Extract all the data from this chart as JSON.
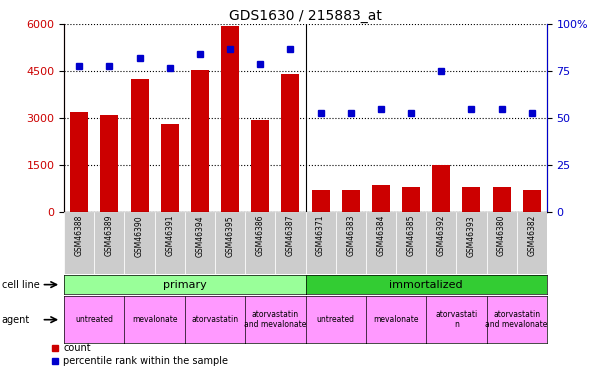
{
  "title": "GDS1630 / 215883_at",
  "samples": [
    "GSM46388",
    "GSM46389",
    "GSM46390",
    "GSM46391",
    "GSM46394",
    "GSM46395",
    "GSM46386",
    "GSM46387",
    "GSM46371",
    "GSM46383",
    "GSM46384",
    "GSM46385",
    "GSM46392",
    "GSM46393",
    "GSM46380",
    "GSM46382"
  ],
  "counts": [
    3200,
    3100,
    4250,
    2800,
    4550,
    5950,
    2950,
    4400,
    700,
    700,
    850,
    800,
    1500,
    800,
    800,
    700
  ],
  "percentile_ranks": [
    78,
    78,
    82,
    77,
    84,
    87,
    79,
    87,
    53,
    53,
    55,
    53,
    75,
    55,
    55,
    53
  ],
  "bar_color": "#cc0000",
  "dot_color": "#0000cc",
  "left_ylim": [
    0,
    6000
  ],
  "right_ylim": [
    0,
    100
  ],
  "left_yticks": [
    0,
    1500,
    3000,
    4500,
    6000
  ],
  "right_yticks": [
    0,
    25,
    50,
    75,
    100
  ],
  "right_yticklabels": [
    "0",
    "25",
    "50",
    "75",
    "100%"
  ],
  "cell_line_primary_color": "#99ff99",
  "cell_line_immortalized_color": "#33cc33",
  "agent_color": "#ff99ff",
  "agent_groups": [
    {
      "label": "untreated",
      "start": 0,
      "end": 2
    },
    {
      "label": "mevalonate",
      "start": 2,
      "end": 4
    },
    {
      "label": "atorvastatin",
      "start": 4,
      "end": 6
    },
    {
      "label": "atorvastatin\nand mevalonate",
      "start": 6,
      "end": 8
    },
    {
      "label": "untreated",
      "start": 8,
      "end": 10
    },
    {
      "label": "mevalonate",
      "start": 10,
      "end": 12
    },
    {
      "label": "atorvastati\nn",
      "start": 12,
      "end": 14
    },
    {
      "label": "atorvastatin\nand mevalonate",
      "start": 14,
      "end": 16
    }
  ],
  "tick_label_color_left": "#cc0000",
  "tick_label_color_right": "#0000cc",
  "xticklabel_bg": "#cccccc",
  "n_primary": 8,
  "n_total": 16
}
